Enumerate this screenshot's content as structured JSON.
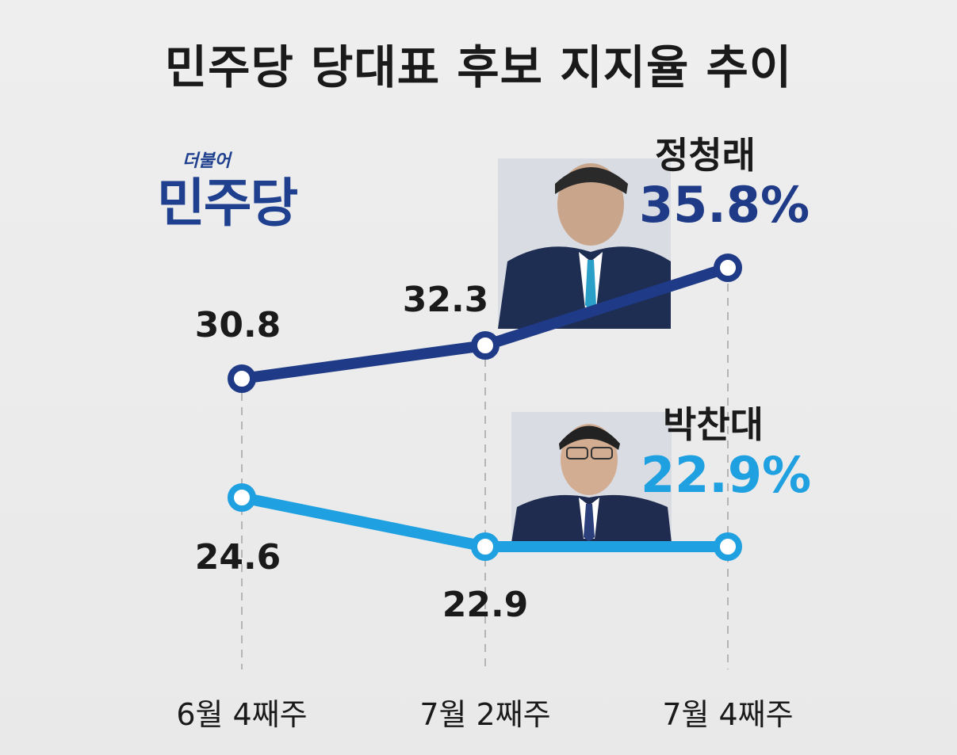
{
  "title": "민주당 당대표 후보 지지율 추이",
  "logo": {
    "small": "더불어",
    "main": "민주당"
  },
  "candidates": [
    {
      "name": "정청래",
      "latest": "35.8%",
      "color": "#1f3a86"
    },
    {
      "name": "박찬대",
      "latest": "22.9%",
      "color": "#1fa0e0"
    }
  ],
  "chart_data": {
    "type": "line",
    "categories": [
      "6월 4째주",
      "7월 2째주",
      "7월 4째주"
    ],
    "series": [
      {
        "name": "정청래",
        "values": [
          30.8,
          32.3,
          35.8
        ],
        "labels": [
          "30.8",
          "32.3",
          ""
        ]
      },
      {
        "name": "박찬대",
        "values": [
          24.6,
          22.9,
          22.9
        ],
        "labels": [
          "24.6",
          "22.9",
          ""
        ]
      }
    ],
    "title": "민주당 당대표 후보 지지율 추이",
    "xlabel": "",
    "ylabel": ""
  }
}
